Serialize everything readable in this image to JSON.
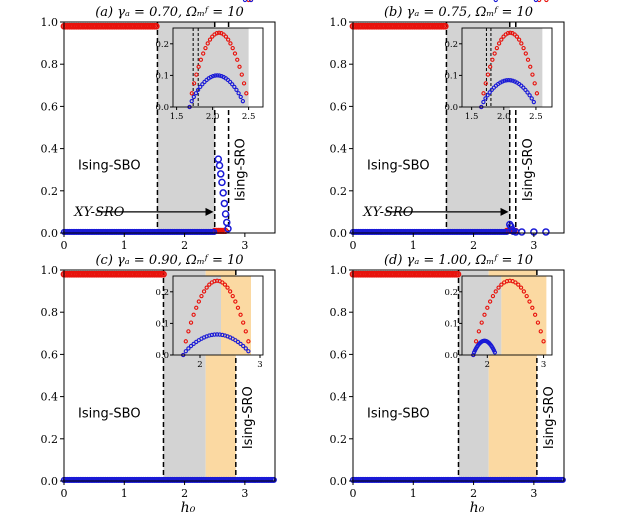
{
  "figure": {
    "xlabel": "h₀"
  },
  "colors": {
    "red": "#e8120c",
    "blue": "#1a1ad6",
    "gray": "#d3d3d3",
    "orange": "#fbd9a2",
    "black": "#000000"
  },
  "chart_data": [
    {
      "type": "scatter",
      "title": "(a) γₐ = 0.70, Ωₘᶠ = 10",
      "xlim": [
        0,
        3.5
      ],
      "ylim": [
        0,
        1.0
      ],
      "xticks": [
        0,
        1,
        2,
        3
      ],
      "yticks": [
        0.0,
        0.2,
        0.4,
        0.6,
        0.8,
        1.0
      ],
      "xticklabels": [
        "0",
        "1",
        "2",
        "3"
      ],
      "yticklabels": [
        "0.0",
        "0.2",
        "0.4",
        "0.6",
        "0.8",
        "1.0"
      ],
      "red_plateau": {
        "x": [
          0,
          1.55
        ],
        "y": 0.98
      },
      "red_tail": {
        "x": [
          2.5,
          2.68
        ],
        "y": 0.01
      },
      "blue_baseline": {
        "x": [
          0,
          2.5
        ],
        "y": 0.005
      },
      "blue_drop": [
        [
          2.56,
          0.35
        ],
        [
          2.58,
          0.32
        ],
        [
          2.6,
          0.28
        ],
        [
          2.62,
          0.24
        ],
        [
          2.64,
          0.19
        ],
        [
          2.66,
          0.14
        ],
        [
          2.68,
          0.09
        ],
        [
          2.7,
          0.05
        ],
        [
          2.72,
          0.02
        ]
      ],
      "vlines": [
        1.55,
        2.5,
        2.73
      ],
      "shade_gray": [
        1.55,
        2.5
      ],
      "shade_orange": null,
      "labels": {
        "left": "Ising-SBO",
        "right": "Ising-SRO",
        "arrow": "XY-SRO"
      },
      "arrow": {
        "from": [
          0.55,
          0.1
        ],
        "to": [
          2.48,
          0.1
        ]
      },
      "inset": {
        "xlim": [
          1.45,
          2.7
        ],
        "ylim": [
          0,
          0.25
        ],
        "xticks": [
          1.5,
          2.0,
          2.5
        ],
        "xticklabels": [
          "1.5",
          "2.0",
          "2.5"
        ],
        "yticks": [
          0.0,
          0.1,
          0.2
        ],
        "yticklabels": [
          "0.0",
          "0.1",
          "0.2"
        ],
        "gray": [
          1.45,
          2.5
        ],
        "orange": null,
        "red_range": [
          1.68,
          2.5,
          0.235
        ],
        "blue_range": [
          1.68,
          2.45,
          0.1
        ],
        "dashed": [
          1.73,
          1.8
        ]
      }
    },
    {
      "type": "scatter",
      "title": "(b) γₐ = 0.75, Ωₘᶠ = 10",
      "xlim": [
        0,
        3.5
      ],
      "ylim": [
        0,
        1.0
      ],
      "xticks": [
        0,
        1,
        2,
        3
      ],
      "yticks": [
        0.0,
        0.2,
        0.4,
        0.6,
        0.8,
        1.0
      ],
      "xticklabels": [
        "0",
        "1",
        "2",
        "3"
      ],
      "yticklabels": [
        "0.0",
        "0.2",
        "0.4",
        "0.6",
        "0.8",
        "1.0"
      ],
      "red_plateau": {
        "x": [
          0,
          1.55
        ],
        "y": 0.98
      },
      "red_tail": {
        "x": [
          2.55,
          2.7
        ],
        "y": 0.01
      },
      "blue_baseline": {
        "x": [
          0,
          2.55
        ],
        "y": 0.005
      },
      "blue_drop": [
        [
          2.6,
          0.04
        ],
        [
          2.62,
          0.03
        ],
        [
          2.64,
          0.015
        ],
        [
          2.66,
          0.008
        ],
        [
          2.7,
          0.005
        ],
        [
          2.8,
          0.005
        ],
        [
          3.0,
          0.005
        ],
        [
          3.2,
          0.005
        ]
      ],
      "vlines": [
        1.55,
        2.6,
        2.7
      ],
      "shade_gray": [
        1.55,
        2.6
      ],
      "shade_orange": null,
      "labels": {
        "left": "Ising-SBO",
        "right": "Ising-SRO",
        "arrow": "XY-SRO"
      },
      "arrow": {
        "from": [
          0.55,
          0.1
        ],
        "to": [
          2.58,
          0.1
        ]
      },
      "inset": {
        "xlim": [
          1.35,
          2.75
        ],
        "ylim": [
          0,
          0.25
        ],
        "xticks": [
          1.5,
          2.0,
          2.5
        ],
        "xticklabels": [
          "1.5",
          "2.0",
          "2.5"
        ],
        "yticks": [
          0.0,
          0.1,
          0.2
        ],
        "yticklabels": [
          "0.0",
          "0.1",
          "0.2"
        ],
        "gray": [
          1.35,
          2.6
        ],
        "orange": null,
        "red_range": [
          1.65,
          2.55,
          0.235
        ],
        "blue_range": [
          1.65,
          2.5,
          0.085
        ],
        "dashed": [
          1.73,
          1.8
        ]
      }
    },
    {
      "type": "scatter",
      "title": "(c) γₐ = 0.90, Ωₘᶠ = 10",
      "xlim": [
        0,
        3.5
      ],
      "ylim": [
        0,
        1.0
      ],
      "xticks": [
        0,
        1,
        2,
        3
      ],
      "yticks": [
        0.0,
        0.2,
        0.4,
        0.6,
        0.8,
        1.0
      ],
      "xticklabels": [
        "0",
        "1",
        "2",
        "3"
      ],
      "yticklabels": [
        "0.0",
        "0.2",
        "0.4",
        "0.6",
        "0.8",
        "1.0"
      ],
      "red_plateau": {
        "x": [
          0,
          1.65
        ],
        "y": 0.98
      },
      "red_tail": null,
      "blue_baseline": {
        "x": [
          0,
          3.5
        ],
        "y": 0.005
      },
      "blue_drop": [],
      "vlines": [
        1.65,
        2.85
      ],
      "shade_gray": [
        1.65,
        2.35
      ],
      "shade_orange": [
        2.35,
        2.85
      ],
      "labels": {
        "left": "Ising-SBO",
        "right": "Ising-SRO",
        "arrow": ""
      },
      "arrow": null,
      "inset": {
        "xlim": [
          1.55,
          3.05
        ],
        "ylim": [
          0,
          0.25
        ],
        "xticks": [
          2,
          3
        ],
        "xticklabels": [
          "2",
          "3"
        ],
        "yticks": [
          0.0,
          0.1,
          0.2
        ],
        "yticklabels": [
          "0.0",
          "0.1",
          "0.2"
        ],
        "gray": [
          1.55,
          2.35
        ],
        "orange": [
          2.35,
          2.85
        ],
        "red_range": [
          1.72,
          2.85,
          0.235
        ],
        "blue_range": [
          1.72,
          2.85,
          0.065
        ],
        "dashed": null
      }
    },
    {
      "type": "scatter",
      "title": "(d) γₐ = 1.00, Ωₘᶠ = 10",
      "xlim": [
        0,
        3.5
      ],
      "ylim": [
        0,
        1.0
      ],
      "xticks": [
        0,
        1,
        2,
        3
      ],
      "yticks": [
        0.0,
        0.2,
        0.4,
        0.6,
        0.8,
        1.0
      ],
      "xticklabels": [
        "0",
        "1",
        "2",
        "3"
      ],
      "yticklabels": [
        "0.0",
        "0.2",
        "0.4",
        "0.6",
        "0.8",
        "1.0"
      ],
      "red_plateau": {
        "x": [
          0,
          1.75
        ],
        "y": 0.98
      },
      "red_tail": null,
      "blue_baseline": {
        "x": [
          0,
          3.5
        ],
        "y": 0.005
      },
      "blue_drop": [],
      "vlines": [
        1.75,
        3.05
      ],
      "shade_gray": [
        1.75,
        2.25
      ],
      "shade_orange": [
        2.25,
        3.05
      ],
      "labels": {
        "left": "Ising-SBO",
        "right": "Ising-SRO",
        "arrow": ""
      },
      "arrow": null,
      "inset": {
        "xlim": [
          1.55,
          3.15
        ],
        "ylim": [
          0,
          0.25
        ],
        "xticks": [
          2,
          3
        ],
        "xticklabels": [
          "2",
          "3"
        ],
        "yticks": [
          0.0,
          0.1,
          0.2
        ],
        "yticklabels": [
          "0.0",
          "0.1",
          "0.2"
        ],
        "gray": [
          1.55,
          2.25
        ],
        "orange": [
          2.25,
          3.05
        ],
        "red_range": [
          1.75,
          3.05,
          0.235
        ],
        "blue_range": [
          1.75,
          2.15,
          0.045
        ],
        "dashed": null
      }
    }
  ]
}
